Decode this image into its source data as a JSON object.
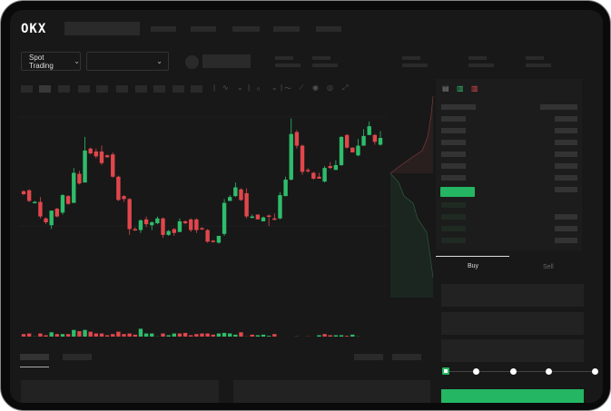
{
  "header": {
    "logo": "OKX"
  },
  "toolbar": {
    "market_selector": "Spot Trading",
    "pair_selector": "",
    "chevron": "⌄"
  },
  "order_form": {
    "tabs": [
      {
        "label": "Buy",
        "active": true
      },
      {
        "label": "Sell",
        "active": false
      }
    ],
    "leverage_slider_value": 0,
    "slider_steps": 5
  },
  "colors": {
    "up": "#2ebd6b",
    "down": "#e0474c",
    "background": "#181818",
    "accent": "#24b662"
  },
  "chart_data": {
    "type": "candlestick",
    "candles": [
      [
        96,
        97,
        92,
        93
      ],
      [
        97,
        98,
        85,
        86
      ],
      [
        84,
        86,
        84,
        85
      ],
      [
        85,
        90,
        68,
        70
      ],
      [
        68,
        69,
        62,
        64
      ],
      [
        61,
        76,
        57,
        76
      ],
      [
        78,
        79,
        69,
        70
      ],
      [
        74,
        93,
        72,
        92
      ],
      [
        91,
        92,
        82,
        83
      ],
      [
        84,
        120,
        84,
        115
      ],
      [
        114,
        117,
        103,
        104
      ],
      [
        105,
        152,
        105,
        138
      ],
      [
        140,
        141,
        134,
        135
      ],
      [
        137,
        140,
        130,
        132
      ],
      [
        137,
        143,
        123,
        125
      ],
      [
        133,
        134,
        131,
        131
      ],
      [
        134,
        136,
        110,
        111
      ],
      [
        111,
        112,
        86,
        87
      ],
      [
        91,
        92,
        85,
        88
      ],
      [
        88,
        89,
        51,
        57
      ],
      [
        57,
        59,
        55,
        56
      ],
      [
        56,
        67,
        53,
        66
      ],
      [
        67,
        70,
        59,
        62
      ],
      [
        61,
        65,
        56,
        64
      ],
      [
        63,
        70,
        62,
        68
      ],
      [
        68,
        69,
        48,
        51
      ],
      [
        51,
        56,
        50,
        55
      ],
      [
        57,
        58,
        50,
        53
      ],
      [
        54,
        68,
        54,
        65
      ],
      [
        65,
        66,
        62,
        63
      ],
      [
        67,
        68,
        54,
        56
      ],
      [
        67,
        68,
        53,
        56
      ],
      [
        58,
        59,
        56,
        57
      ],
      [
        56,
        57,
        43,
        44
      ],
      [
        45,
        46,
        43,
        44
      ],
      [
        43,
        50,
        42,
        50
      ],
      [
        52,
        88,
        50,
        84
      ],
      [
        86,
        92,
        86,
        90
      ],
      [
        91,
        105,
        90,
        100
      ],
      [
        98,
        99,
        86,
        87
      ],
      [
        94,
        99,
        68,
        70
      ],
      [
        69,
        72,
        68,
        70
      ],
      [
        72,
        72,
        67,
        67
      ],
      [
        65,
        70,
        65,
        69
      ],
      [
        71,
        72,
        60,
        70
      ],
      [
        68,
        73,
        66,
        67
      ],
      [
        68,
        95,
        67,
        92
      ],
      [
        91,
        111,
        91,
        108
      ],
      [
        108,
        171,
        107,
        155
      ],
      [
        157,
        159,
        140,
        143
      ],
      [
        143,
        144,
        113,
        116
      ],
      [
        118,
        120,
        115,
        117
      ],
      [
        115,
        116,
        108,
        109
      ],
      [
        111,
        115,
        109,
        109
      ],
      [
        106,
        122,
        105,
        120
      ],
      [
        122,
        126,
        119,
        120
      ],
      [
        118,
        128,
        118,
        123
      ],
      [
        123,
        153,
        122,
        152
      ],
      [
        154,
        155,
        140,
        141
      ],
      [
        141,
        141,
        136,
        136
      ],
      [
        133,
        150,
        132,
        143
      ],
      [
        143,
        160,
        143,
        153
      ],
      [
        154,
        168,
        154,
        163
      ],
      [
        154,
        155,
        144,
        147
      ],
      [
        144,
        158,
        143,
        151
      ]
    ],
    "candle_fields": [
      "open",
      "high",
      "low",
      "close"
    ],
    "volume": [
      [
        12,
        "d"
      ],
      [
        13,
        "d"
      ],
      [
        8,
        "u"
      ],
      [
        13,
        "d"
      ],
      [
        10,
        "d"
      ],
      [
        15,
        "u"
      ],
      [
        12,
        "d"
      ],
      [
        12,
        "u"
      ],
      [
        12,
        "d"
      ],
      [
        19,
        "u"
      ],
      [
        17,
        "d"
      ],
      [
        19,
        "u"
      ],
      [
        16,
        "d"
      ],
      [
        13,
        "d"
      ],
      [
        13,
        "d"
      ],
      [
        10,
        "d"
      ],
      [
        12,
        "d"
      ],
      [
        16,
        "d"
      ],
      [
        12,
        "d"
      ],
      [
        13,
        "d"
      ],
      [
        11,
        "d"
      ],
      [
        21,
        "u"
      ],
      [
        13,
        "u"
      ],
      [
        13,
        "u"
      ],
      [
        8,
        "u"
      ],
      [
        13,
        "d"
      ],
      [
        10,
        "u"
      ],
      [
        13,
        "u"
      ],
      [
        13,
        "d"
      ],
      [
        14,
        "d"
      ],
      [
        10,
        "d"
      ],
      [
        12,
        "d"
      ],
      [
        13,
        "d"
      ],
      [
        13,
        "d"
      ],
      [
        11,
        "d"
      ],
      [
        13,
        "u"
      ],
      [
        14,
        "u"
      ],
      [
        13,
        "u"
      ],
      [
        11,
        "u"
      ],
      [
        15,
        "d"
      ],
      [
        8,
        "d"
      ],
      [
        11,
        "d"
      ],
      [
        10,
        "u"
      ],
      [
        11,
        "u"
      ],
      [
        9,
        "u"
      ],
      [
        12,
        "d"
      ],
      [
        3,
        "d"
      ],
      [
        3,
        "u"
      ],
      [
        5,
        "d"
      ],
      [
        8,
        "u"
      ],
      [
        7,
        "u"
      ],
      [
        8,
        "d"
      ],
      [
        7,
        "d"
      ],
      [
        10,
        "u"
      ],
      [
        12,
        "d"
      ],
      [
        10,
        "d"
      ],
      [
        10,
        "u"
      ],
      [
        10,
        "u"
      ],
      [
        9,
        "d"
      ],
      [
        11,
        "u"
      ],
      [
        8,
        "u"
      ],
      [
        7,
        "u"
      ],
      [
        4,
        "u"
      ],
      [
        3,
        "d"
      ],
      [
        5,
        "u"
      ]
    ],
    "ylim": [
      35,
      180
    ],
    "grid": true
  }
}
